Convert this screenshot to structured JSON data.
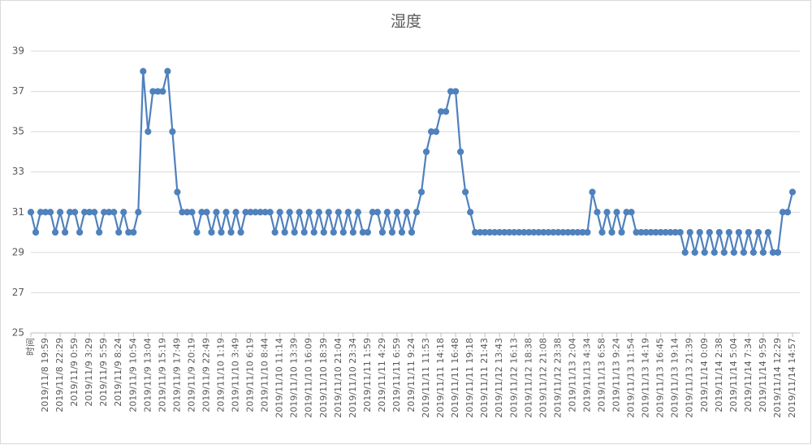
{
  "chart_data": {
    "type": "line",
    "title": "湿度",
    "categories": [
      "时间",
      null,
      null,
      "2019/11/8 19:59",
      null,
      null,
      "2019/11/8 22:29",
      null,
      null,
      "2019/11/9 0:59",
      null,
      null,
      "2019/11/9 3:29",
      null,
      null,
      "2019/11/9 5:59",
      null,
      null,
      "2019/11/9 8:24",
      null,
      null,
      "2019/11/9 10:54",
      null,
      null,
      "2019/11/9 13:04",
      null,
      null,
      "2019/11/9 15:19",
      null,
      null,
      "2019/11/9 17:49",
      null,
      null,
      "2019/11/9 20:19",
      null,
      null,
      "2019/11/9 22:49",
      null,
      null,
      "2019/11/10 1:19",
      null,
      null,
      "2019/11/10 3:49",
      null,
      null,
      "2019/11/10 6:19",
      null,
      null,
      "2019/11/10 8:44",
      null,
      null,
      "2019/11/10 11:14",
      null,
      null,
      "2019/11/10 13:39",
      null,
      null,
      "2019/11/10 16:09",
      null,
      null,
      "2019/11/10 18:39",
      null,
      null,
      "2019/11/10 21:04",
      null,
      null,
      "2019/11/10 23:34",
      null,
      null,
      "2019/11/11 1:59",
      null,
      null,
      "2019/11/11 4:29",
      null,
      null,
      "2019/11/11 6:59",
      null,
      null,
      "2019/11/11 9:24",
      null,
      null,
      "2019/11/11 11:53",
      null,
      null,
      "2019/11/11 14:18",
      null,
      null,
      "2019/11/11 16:48",
      null,
      null,
      "2019/11/11 19:18",
      null,
      null,
      "2019/11/11 21:43",
      null,
      null,
      "2019/11/12 13:43",
      null,
      null,
      "2019/11/12 16:13",
      null,
      null,
      "2019/11/12 18:38",
      null,
      null,
      "2019/11/12 21:08",
      null,
      null,
      "2019/11/12 23:38",
      null,
      null,
      "2019/11/13 2:04",
      null,
      null,
      "2019/11/13 4:34",
      null,
      null,
      "2019/11/13 6:58",
      null,
      null,
      "2019/11/13 9:24",
      null,
      null,
      "2019/11/13 11:54",
      null,
      null,
      "2019/11/13 14:19",
      null,
      null,
      "2019/11/13 16:45",
      null,
      null,
      "2019/11/13 19:14",
      null,
      null,
      "2019/11/13 21:39",
      null,
      null,
      "2019/11/14 0:09",
      null,
      null,
      "2019/11/14 2:38",
      null,
      null,
      "2019/11/14 5:04",
      null,
      null,
      "2019/11/14 7:34",
      null,
      null,
      "2019/11/14 9:59",
      null,
      null,
      "2019/11/14 12:29",
      null,
      null,
      "2019/11/14 14:57"
    ],
    "values": [
      31,
      30,
      31,
      31,
      31,
      30,
      31,
      30,
      31,
      31,
      30,
      31,
      31,
      31,
      30,
      31,
      31,
      31,
      30,
      31,
      30,
      30,
      31,
      38,
      35,
      37,
      37,
      37,
      38,
      35,
      32,
      31,
      31,
      31,
      30,
      31,
      31,
      30,
      31,
      30,
      31,
      30,
      31,
      30,
      31,
      31,
      31,
      31,
      31,
      31,
      30,
      31,
      30,
      31,
      30,
      31,
      30,
      31,
      30,
      31,
      30,
      31,
      30,
      31,
      30,
      31,
      30,
      31,
      30,
      30,
      31,
      31,
      30,
      31,
      30,
      31,
      30,
      31,
      30,
      31,
      32,
      34,
      35,
      35,
      36,
      36,
      37,
      37,
      34,
      32,
      31,
      30,
      30,
      30,
      30,
      30,
      30,
      30,
      30,
      30,
      30,
      30,
      30,
      30,
      30,
      30,
      30,
      30,
      30,
      30,
      30,
      30,
      30,
      30,
      30,
      32,
      31,
      30,
      31,
      30,
      31,
      30,
      31,
      31,
      30,
      30,
      30,
      30,
      30,
      30,
      30,
      30,
      30,
      30,
      29,
      30,
      29,
      30,
      29,
      30,
      29,
      30,
      29,
      30,
      29,
      30,
      29,
      30,
      29,
      30,
      29,
      30,
      29,
      29,
      31,
      31,
      32
    ],
    "color": "#4f81bd",
    "ylim": [
      25,
      39
    ],
    "yticks": [
      25,
      27,
      29,
      31,
      33,
      35,
      37,
      39
    ],
    "grid": true
  }
}
